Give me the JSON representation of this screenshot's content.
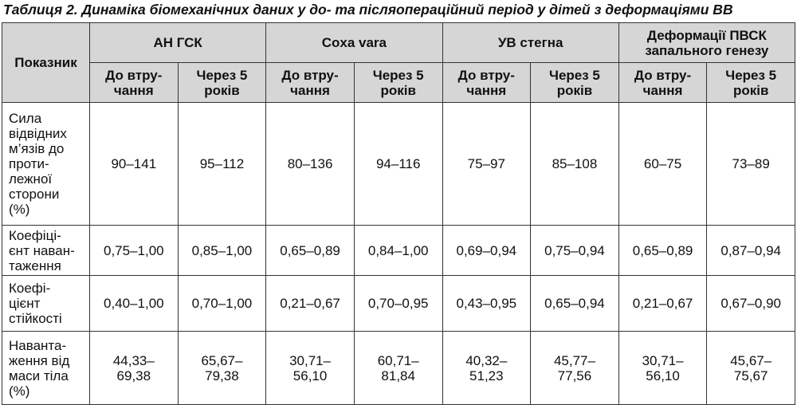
{
  "title": "Таблиця 2. Динаміка біомеханічних даних у до- та післяопераційний період у дітей з деформаціями ВВ",
  "table": {
    "header": {
      "indicator": [
        "Показник"
      ],
      "groups": [
        [
          "АН ГСК"
        ],
        [
          "Coxa vara"
        ],
        [
          "УВ стегна"
        ],
        [
          "Деформації ПВСК",
          "запального генезу"
        ]
      ],
      "subheaders": [
        [
          "До втру-",
          "чання"
        ],
        [
          "Через 5",
          "років"
        ],
        [
          "До втру-",
          "чання"
        ],
        [
          "Через 5",
          "років"
        ],
        [
          "До втру-",
          "чання"
        ],
        [
          "Через 5",
          "років"
        ],
        [
          "До втру-",
          "чання"
        ],
        [
          "Через 5",
          "років"
        ]
      ]
    },
    "rows": [
      {
        "label": [
          "Сила",
          "відвідних",
          "м’язів до",
          "проти-",
          "лежної",
          "сторони",
          "(%)"
        ],
        "values": [
          [
            "90–141"
          ],
          [
            "95–112"
          ],
          [
            "80–136"
          ],
          [
            "94–116"
          ],
          [
            "75–97"
          ],
          [
            "85–108"
          ],
          [
            "60–75"
          ],
          [
            "73–89"
          ]
        ]
      },
      {
        "label": [
          "Коефіці-",
          "єнт наван-",
          "таження"
        ],
        "values": [
          [
            "0,75–1,00"
          ],
          [
            "0,85–1,00"
          ],
          [
            "0,65–0,89"
          ],
          [
            "0,84–1,00"
          ],
          [
            "0,69–0,94"
          ],
          [
            "0,75–0,94"
          ],
          [
            "0,65–0,89"
          ],
          [
            "0,87–0,94"
          ]
        ]
      },
      {
        "label": [
          "Коефі-",
          "цієнт",
          "стійкості"
        ],
        "values": [
          [
            "0,40–1,00"
          ],
          [
            "0,70–1,00"
          ],
          [
            "0,21–0,67"
          ],
          [
            "0,70–0,95"
          ],
          [
            "0,43–0,95"
          ],
          [
            "0,65–0,94"
          ],
          [
            "0,21–0,67"
          ],
          [
            "0,67–0,90"
          ]
        ]
      },
      {
        "label": [
          "Наванта-",
          "ження від",
          "маси тіла",
          "(%)"
        ],
        "values": [
          [
            "44,33–",
            "69,38"
          ],
          [
            "65,67–",
            "79,38"
          ],
          [
            "30,71–",
            "56,10"
          ],
          [
            "60,71–",
            "81,84"
          ],
          [
            "40,32–",
            "51,23"
          ],
          [
            "45,77–",
            "77,56"
          ],
          [
            "30,71–",
            "56,10"
          ],
          [
            "45,67–",
            "75,67"
          ]
        ]
      }
    ]
  }
}
